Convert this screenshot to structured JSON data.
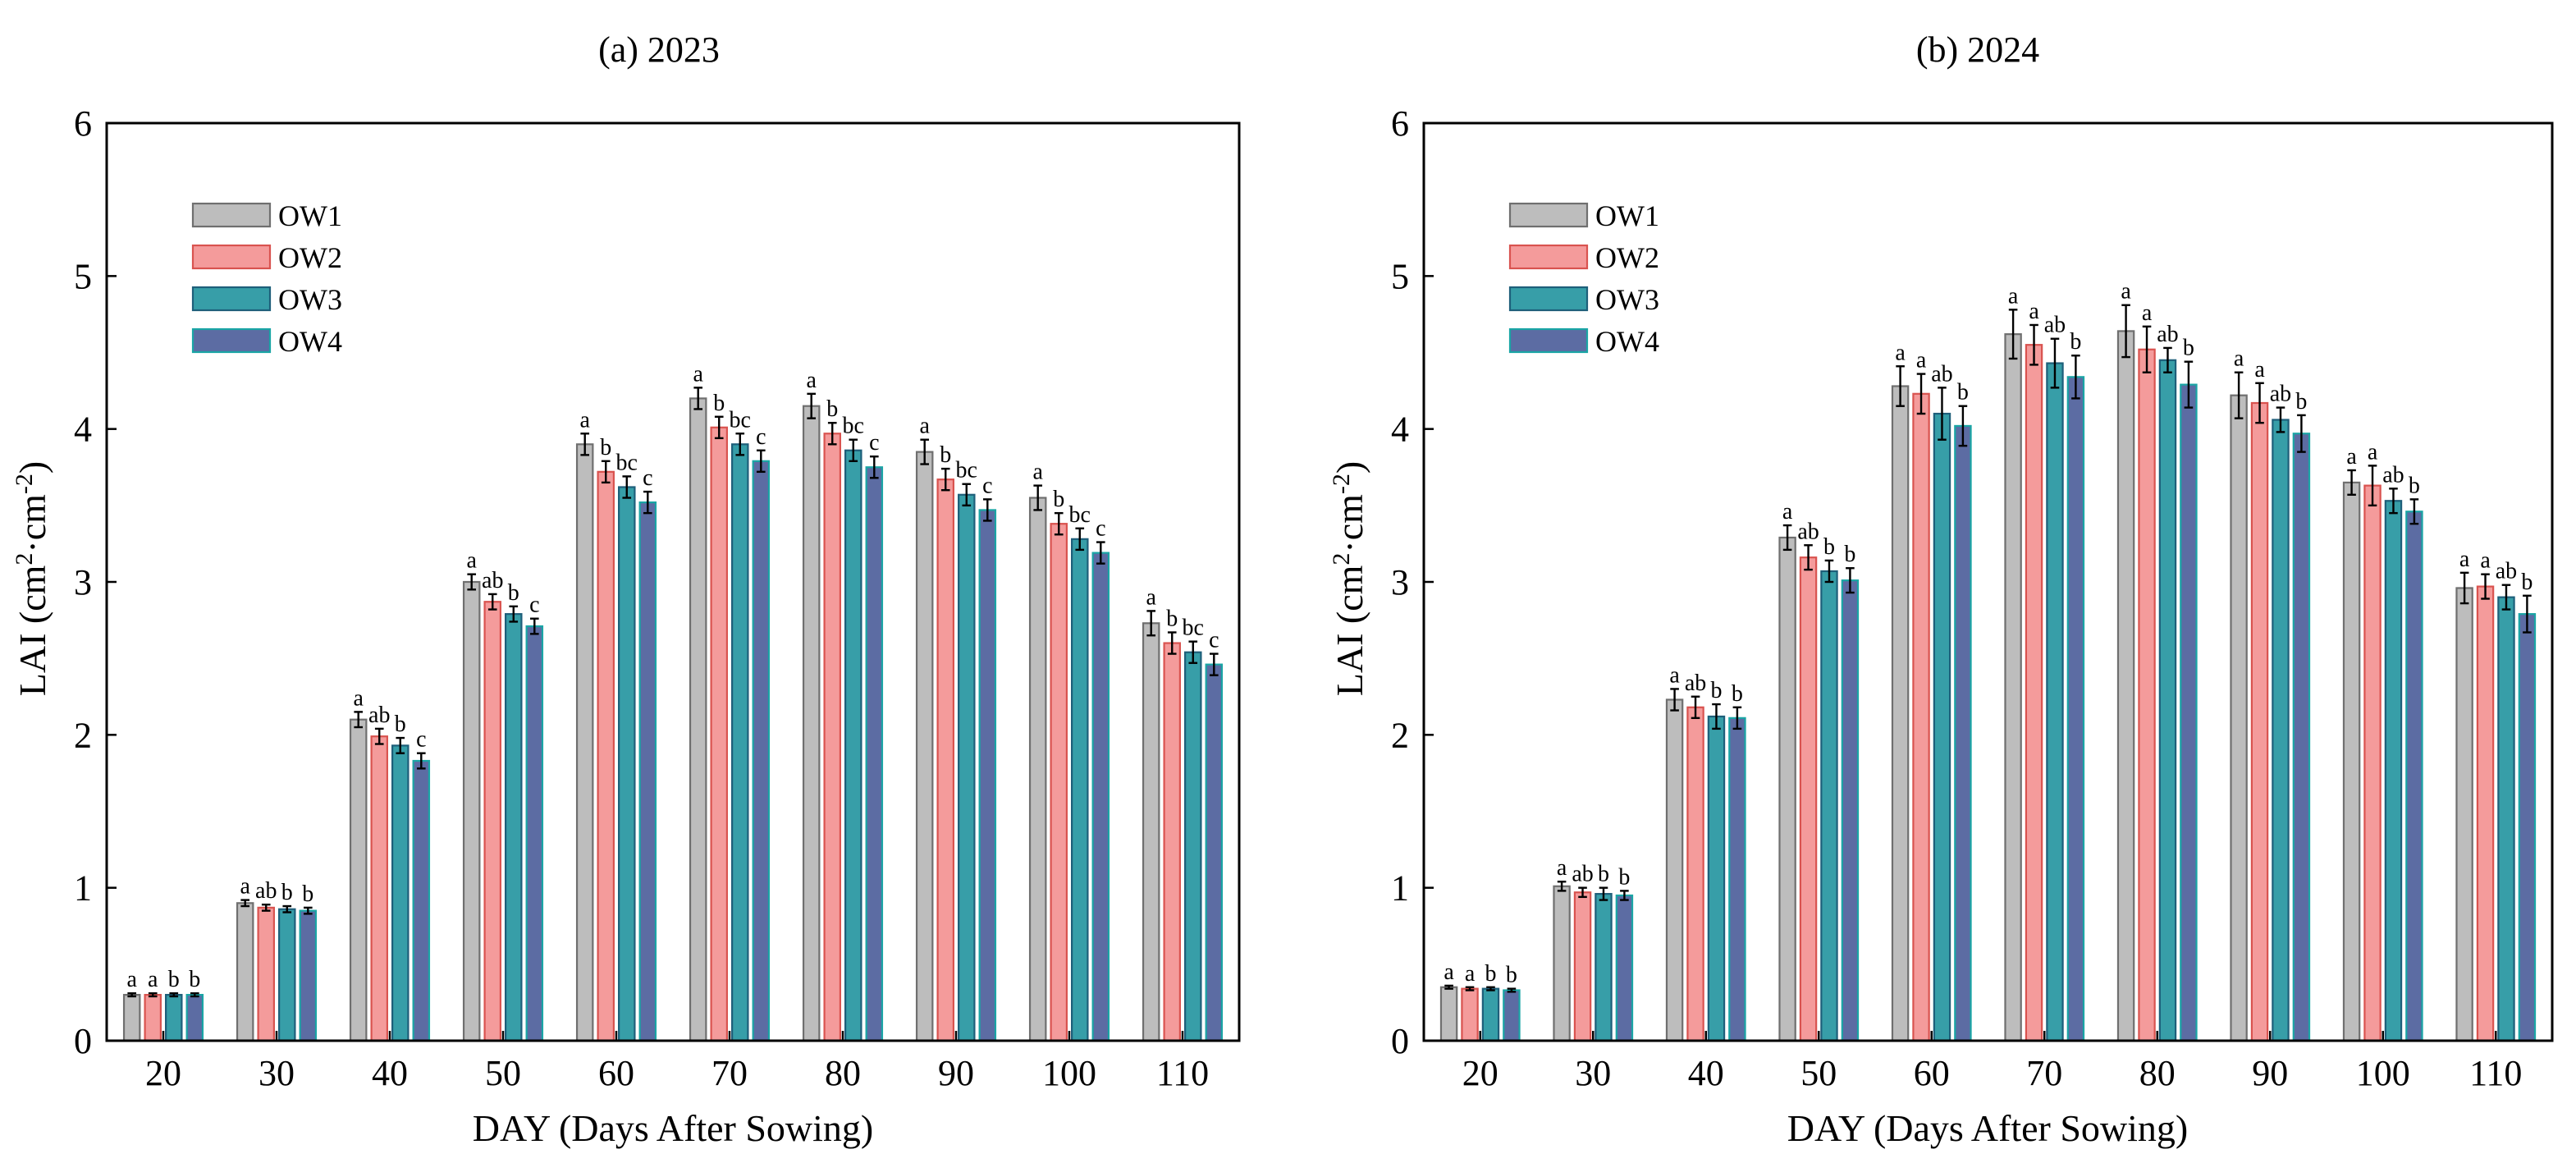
{
  "colors": {
    "OW1": "#BDBDBD",
    "OW2": "#F49B9B",
    "OW3": "#379EA8",
    "OW4": "#5C6CA3",
    "OW1_edge": "#6F6F6F",
    "OW2_edge": "#D9534F",
    "OW3_edge": "#1E5F7A",
    "OW4_edge": "#1AA5A5"
  },
  "chart_data": [
    {
      "type": "bar",
      "title": "(a) 2023",
      "xlabel": "DAY (Days After Sowing)",
      "ylabel": "LAI (cm²·cm⁻²)",
      "ylim": [
        0,
        6
      ],
      "yticks": [
        "0",
        "1",
        "2",
        "3",
        "4",
        "5",
        "6"
      ],
      "legend_position": "top-left",
      "categories": [
        "20",
        "30",
        "40",
        "50",
        "60",
        "70",
        "80",
        "90",
        "100",
        "110"
      ],
      "series": [
        {
          "name": "OW1",
          "values": [
            0.3,
            0.9,
            2.1,
            3.0,
            3.9,
            4.2,
            4.15,
            3.85,
            3.55,
            2.73
          ],
          "errors": [
            0.01,
            0.02,
            0.05,
            0.05,
            0.07,
            0.07,
            0.08,
            0.08,
            0.08,
            0.08
          ],
          "letters": [
            "a",
            "a",
            "a",
            "a",
            "a",
            "a",
            "a",
            "a",
            "a",
            "a"
          ]
        },
        {
          "name": "OW2",
          "values": [
            0.3,
            0.87,
            1.99,
            2.87,
            3.72,
            4.01,
            3.97,
            3.67,
            3.38,
            2.6
          ],
          "errors": [
            0.01,
            0.02,
            0.05,
            0.05,
            0.07,
            0.07,
            0.07,
            0.07,
            0.07,
            0.07
          ],
          "letters": [
            "a",
            "ab",
            "ab",
            "ab",
            "b",
            "b",
            "b",
            "b",
            "b",
            "b"
          ]
        },
        {
          "name": "OW3",
          "values": [
            0.3,
            0.86,
            1.93,
            2.79,
            3.62,
            3.9,
            3.86,
            3.57,
            3.28,
            2.54
          ],
          "errors": [
            0.01,
            0.02,
            0.05,
            0.05,
            0.07,
            0.07,
            0.07,
            0.07,
            0.07,
            0.07
          ],
          "letters": [
            "b",
            "b",
            "b",
            "b",
            "bc",
            "bc",
            "bc",
            "bc",
            "bc",
            "bc"
          ]
        },
        {
          "name": "OW4",
          "values": [
            0.3,
            0.85,
            1.83,
            2.71,
            3.52,
            3.79,
            3.75,
            3.47,
            3.19,
            2.46
          ],
          "errors": [
            0.01,
            0.02,
            0.05,
            0.05,
            0.07,
            0.07,
            0.07,
            0.07,
            0.07,
            0.07
          ],
          "letters": [
            "b",
            "b",
            "c",
            "c",
            "c",
            "c",
            "c",
            "c",
            "c",
            "c"
          ]
        }
      ]
    },
    {
      "type": "bar",
      "title": "(b) 2024",
      "xlabel": "DAY (Days After Sowing)",
      "ylabel": "LAI (cm²·cm⁻²)",
      "ylim": [
        0,
        6
      ],
      "yticks": [
        "0",
        "1",
        "2",
        "3",
        "4",
        "5",
        "6"
      ],
      "legend_position": "top-left",
      "categories": [
        "20",
        "30",
        "40",
        "50",
        "60",
        "70",
        "80",
        "90",
        "100",
        "110"
      ],
      "series": [
        {
          "name": "OW1",
          "values": [
            0.35,
            1.01,
            2.23,
            3.29,
            4.28,
            4.62,
            4.64,
            4.22,
            3.65,
            2.96
          ],
          "errors": [
            0.01,
            0.03,
            0.07,
            0.08,
            0.13,
            0.16,
            0.17,
            0.15,
            0.08,
            0.1
          ],
          "letters": [
            "a",
            "a",
            "a",
            "a",
            "a",
            "a",
            "a",
            "a",
            "a",
            "a"
          ]
        },
        {
          "name": "OW2",
          "values": [
            0.34,
            0.97,
            2.18,
            3.16,
            4.23,
            4.55,
            4.52,
            4.17,
            3.63,
            2.97
          ],
          "errors": [
            0.01,
            0.03,
            0.07,
            0.08,
            0.13,
            0.13,
            0.15,
            0.13,
            0.13,
            0.08
          ],
          "letters": [
            "a",
            "ab",
            "ab",
            "ab",
            "a",
            "a",
            "a",
            "a",
            "a",
            "a"
          ]
        },
        {
          "name": "OW3",
          "values": [
            0.34,
            0.96,
            2.12,
            3.07,
            4.1,
            4.43,
            4.45,
            4.06,
            3.53,
            2.9
          ],
          "errors": [
            0.01,
            0.04,
            0.08,
            0.07,
            0.17,
            0.16,
            0.08,
            0.08,
            0.08,
            0.08
          ],
          "letters": [
            "b",
            "b",
            "b",
            "b",
            "ab",
            "ab",
            "ab",
            "ab",
            "ab",
            "ab"
          ]
        },
        {
          "name": "OW4",
          "values": [
            0.33,
            0.95,
            2.11,
            3.01,
            4.02,
            4.34,
            4.29,
            3.97,
            3.46,
            2.79
          ],
          "errors": [
            0.01,
            0.03,
            0.07,
            0.08,
            0.13,
            0.14,
            0.15,
            0.12,
            0.08,
            0.12
          ],
          "letters": [
            "b",
            "b",
            "b",
            "b",
            "b",
            "b",
            "b",
            "b",
            "b",
            "b"
          ]
        }
      ]
    }
  ]
}
